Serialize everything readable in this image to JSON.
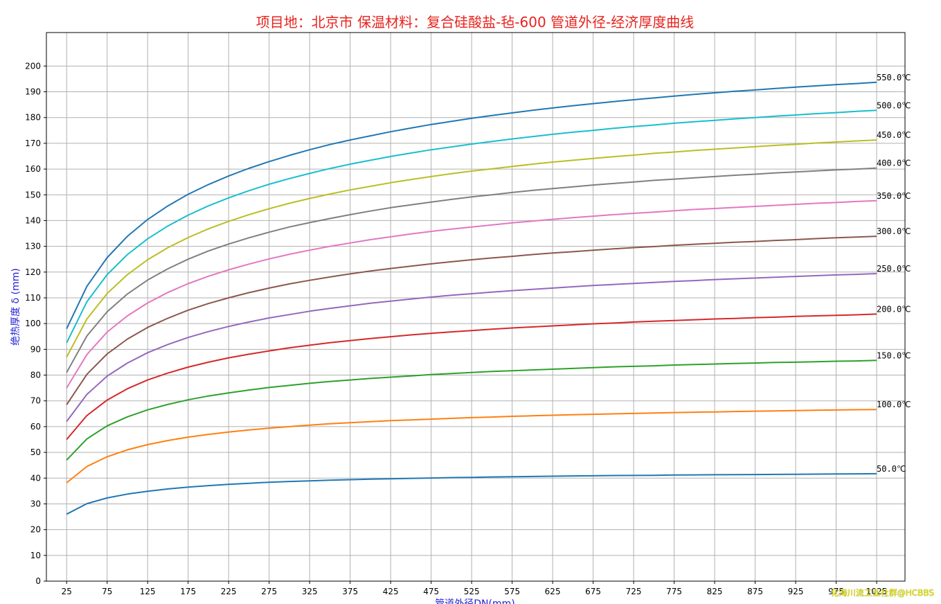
{
  "watermark": "化海川流工业社群@HCBBS",
  "chart_data": {
    "type": "line",
    "title": "项目地：北京市      保温材料：复合硅酸盐-毡-600      管道外径-经济厚度曲线",
    "xlabel": "管道外径DN(mm)",
    "ylabel": "绝热厚度 δ (mm)",
    "xlim": [
      0,
      1060
    ],
    "ylim": [
      0,
      213
    ],
    "grid": true,
    "x_ticks": [
      25,
      75,
      125,
      175,
      225,
      275,
      325,
      375,
      425,
      475,
      525,
      575,
      625,
      675,
      725,
      775,
      825,
      875,
      925,
      975,
      1025
    ],
    "y_ticks": [
      0,
      10,
      20,
      30,
      40,
      50,
      60,
      70,
      80,
      90,
      100,
      110,
      120,
      130,
      140,
      150,
      160,
      170,
      180,
      190,
      200
    ],
    "x": [
      25,
      50,
      75,
      100,
      125,
      150,
      175,
      200,
      225,
      250,
      275,
      300,
      325,
      350,
      375,
      400,
      425,
      450,
      475,
      500,
      525,
      550,
      575,
      600,
      625,
      650,
      675,
      700,
      725,
      750,
      775,
      800,
      825,
      850,
      875,
      900,
      925,
      950,
      975,
      1000,
      1025
    ],
    "series": [
      {
        "name": "50.0℃",
        "color": "#1f77b4",
        "values": [
          26,
          30.1,
          32.3,
          33.8,
          34.9,
          35.8,
          36.5,
          37.1,
          37.6,
          38.0,
          38.4,
          38.7,
          38.95,
          39.2,
          39.4,
          39.6,
          39.75,
          39.9,
          40.05,
          40.2,
          40.3,
          40.45,
          40.55,
          40.65,
          40.75,
          40.85,
          40.9,
          41.0,
          41.05,
          41.1,
          41.2,
          41.25,
          41.3,
          41.35,
          41.4,
          41.45,
          41.5,
          41.55,
          41.6,
          41.65,
          41.7
        ]
      },
      {
        "name": "100.0℃",
        "color": "#ff7f0e",
        "values": [
          38.2,
          44.5,
          48.3,
          51.0,
          53.0,
          54.6,
          55.9,
          57.0,
          57.9,
          58.7,
          59.4,
          60.0,
          60.6,
          61.1,
          61.5,
          61.9,
          62.3,
          62.6,
          62.9,
          63.2,
          63.5,
          63.7,
          64.0,
          64.2,
          64.4,
          64.6,
          64.8,
          64.95,
          65.1,
          65.3,
          65.45,
          65.6,
          65.7,
          65.85,
          66.0,
          66.1,
          66.2,
          66.35,
          66.45,
          66.55,
          66.65
        ]
      },
      {
        "name": "150.0℃",
        "color": "#2ca02c",
        "values": [
          47,
          55.2,
          60.3,
          63.8,
          66.5,
          68.6,
          70.4,
          71.9,
          73.1,
          74.2,
          75.2,
          76.0,
          76.8,
          77.5,
          78.1,
          78.7,
          79.2,
          79.7,
          80.2,
          80.6,
          81.0,
          81.4,
          81.7,
          82.0,
          82.3,
          82.6,
          82.9,
          83.2,
          83.4,
          83.6,
          83.9,
          84.1,
          84.3,
          84.5,
          84.7,
          84.9,
          85.0,
          85.2,
          85.4,
          85.5,
          85.7
        ]
      },
      {
        "name": "200.0℃",
        "color": "#d62728",
        "values": [
          55,
          64.3,
          70.3,
          74.7,
          78.1,
          80.8,
          83.1,
          85.0,
          86.7,
          88.1,
          89.4,
          90.6,
          91.6,
          92.6,
          93.4,
          94.2,
          94.9,
          95.6,
          96.2,
          96.8,
          97.3,
          97.8,
          98.3,
          98.7,
          99.1,
          99.5,
          99.9,
          100.2,
          100.6,
          100.9,
          101.2,
          101.5,
          101.8,
          102.0,
          102.3,
          102.5,
          102.8,
          103.0,
          103.2,
          103.4,
          103.7
        ]
      },
      {
        "name": "250.0℃",
        "color": "#9467bd",
        "values": [
          62,
          72.5,
          79.6,
          84.7,
          88.7,
          91.9,
          94.6,
          96.9,
          98.9,
          100.6,
          102.2,
          103.5,
          104.8,
          105.9,
          106.9,
          107.9,
          108.7,
          109.5,
          110.3,
          111.0,
          111.6,
          112.2,
          112.8,
          113.3,
          113.8,
          114.3,
          114.8,
          115.2,
          115.6,
          116.0,
          116.4,
          116.7,
          117.1,
          117.4,
          117.7,
          118.0,
          118.3,
          118.6,
          118.9,
          119.1,
          119.4
        ]
      },
      {
        "name": "300.0℃",
        "color": "#8c564b",
        "values": [
          68.5,
          80.3,
          88.2,
          94.0,
          98.5,
          102.1,
          105.2,
          107.8,
          110.0,
          112.0,
          113.8,
          115.4,
          116.8,
          118.1,
          119.3,
          120.4,
          121.4,
          122.3,
          123.2,
          124.0,
          124.8,
          125.5,
          126.1,
          126.8,
          127.4,
          127.9,
          128.5,
          129.0,
          129.5,
          129.9,
          130.4,
          130.8,
          131.2,
          131.6,
          131.9,
          132.3,
          132.6,
          133.0,
          133.3,
          133.6,
          133.9
        ]
      },
      {
        "name": "350.0℃",
        "color": "#e377c2",
        "values": [
          75,
          88.0,
          96.7,
          103.0,
          108.0,
          112.1,
          115.5,
          118.4,
          120.9,
          123.1,
          125.1,
          126.9,
          128.5,
          130.0,
          131.3,
          132.6,
          133.7,
          134.8,
          135.8,
          136.7,
          137.5,
          138.3,
          139.1,
          139.8,
          140.5,
          141.1,
          141.7,
          142.3,
          142.8,
          143.3,
          143.8,
          144.3,
          144.7,
          145.1,
          145.5,
          145.9,
          146.3,
          146.7,
          147.0,
          147.4,
          147.7
        ]
      },
      {
        "name": "400.0℃",
        "color": "#7f7f7f",
        "values": [
          81,
          95.2,
          104.6,
          111.5,
          116.9,
          121.3,
          125.0,
          128.2,
          130.9,
          133.3,
          135.5,
          137.5,
          139.2,
          140.8,
          142.3,
          143.7,
          145.0,
          146.1,
          147.2,
          148.2,
          149.2,
          150.0,
          150.9,
          151.7,
          152.4,
          153.1,
          153.8,
          154.4,
          155.0,
          155.6,
          156.1,
          156.6,
          157.1,
          157.6,
          158.0,
          158.5,
          158.9,
          159.3,
          159.7,
          160.0,
          160.4
        ]
      },
      {
        "name": "450.0℃",
        "color": "#bcbd22",
        "values": [
          87,
          101.8,
          111.7,
          119.0,
          124.8,
          129.5,
          133.4,
          136.8,
          139.7,
          142.3,
          144.6,
          146.7,
          148.6,
          150.3,
          151.9,
          153.3,
          154.7,
          155.9,
          157.1,
          158.2,
          159.2,
          160.1,
          161.0,
          161.9,
          162.7,
          163.4,
          164.1,
          164.8,
          165.4,
          166.1,
          166.6,
          167.2,
          167.7,
          168.2,
          168.7,
          169.2,
          169.6,
          170.1,
          170.5,
          170.9,
          171.3
        ]
      },
      {
        "name": "500.0℃",
        "color": "#17becf",
        "values": [
          92.5,
          108.5,
          119.0,
          126.8,
          132.9,
          137.9,
          142.1,
          145.7,
          148.8,
          151.6,
          154.1,
          156.3,
          158.3,
          160.2,
          161.9,
          163.4,
          164.9,
          166.2,
          167.5,
          168.6,
          169.7,
          170.7,
          171.7,
          172.6,
          173.5,
          174.3,
          175.0,
          175.8,
          176.5,
          177.1,
          177.8,
          178.4,
          178.9,
          179.5,
          180.0,
          180.5,
          181.0,
          181.5,
          181.9,
          182.4,
          182.8
        ]
      },
      {
        "name": "550.0℃",
        "color": "#1f77b4",
        "values": [
          98,
          114.5,
          125.6,
          133.9,
          140.4,
          145.7,
          150.2,
          154.0,
          157.3,
          160.3,
          162.9,
          165.3,
          167.5,
          169.5,
          171.3,
          172.9,
          174.5,
          175.9,
          177.3,
          178.5,
          179.7,
          180.8,
          181.8,
          182.8,
          183.7,
          184.6,
          185.4,
          186.2,
          186.9,
          187.6,
          188.3,
          189.0,
          189.6,
          190.2,
          190.7,
          191.3,
          191.8,
          192.3,
          192.8,
          193.2,
          193.7
        ]
      }
    ]
  }
}
